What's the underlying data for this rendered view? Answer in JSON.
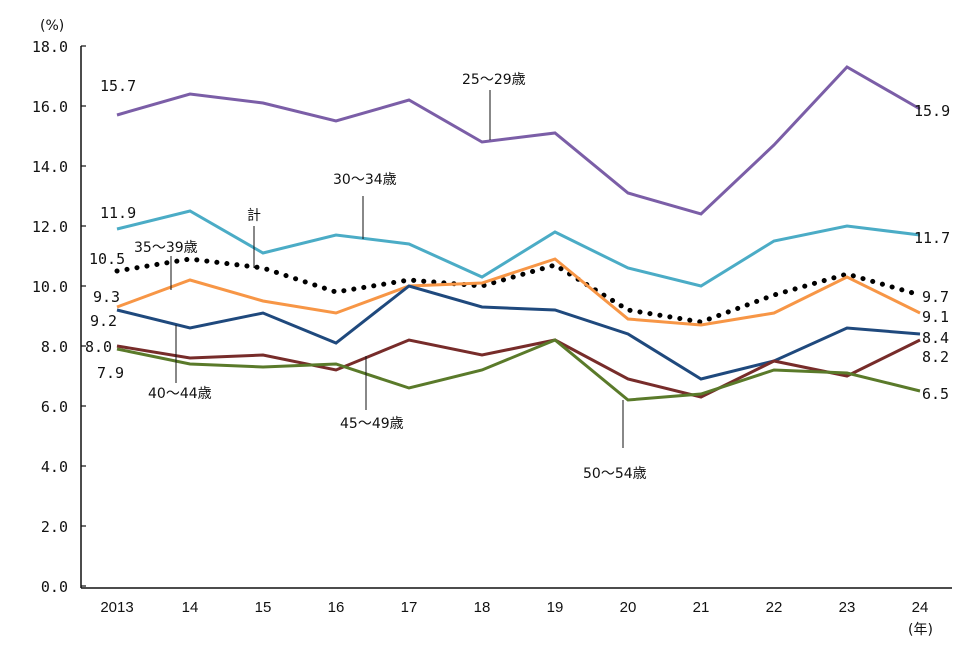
{
  "chart_data": {
    "type": "line",
    "title": "",
    "ylabel": "(%)",
    "xlabel": "(年)",
    "ylim": [
      0,
      18
    ],
    "yticks": [
      "0.0",
      "2.0",
      "4.0",
      "6.0",
      "8.0",
      "10.0",
      "12.0",
      "14.0",
      "16.0",
      "18.0"
    ],
    "ytick_values": [
      0,
      2,
      4,
      6,
      8,
      10,
      12,
      14,
      16,
      18
    ],
    "categories": [
      "2013",
      "14",
      "15",
      "16",
      "17",
      "18",
      "19",
      "20",
      "21",
      "22",
      "23",
      "24"
    ],
    "grid": false,
    "series": [
      {
        "name": "25〜29歳",
        "color": "#7b5ea7",
        "style": "solid",
        "values": [
          15.7,
          16.4,
          16.1,
          15.5,
          16.2,
          14.8,
          15.1,
          13.1,
          12.4,
          14.7,
          17.3,
          15.9
        ]
      },
      {
        "name": "30〜34歳",
        "color": "#4bacc6",
        "style": "solid",
        "values": [
          11.9,
          12.5,
          11.1,
          11.7,
          11.4,
          10.3,
          11.8,
          10.6,
          10.0,
          11.5,
          12.0,
          11.7
        ]
      },
      {
        "name": "計",
        "color": "#000000",
        "style": "dotted",
        "values": [
          10.5,
          10.9,
          10.6,
          9.8,
          10.2,
          10.0,
          10.7,
          9.2,
          8.8,
          9.7,
          10.4,
          9.7
        ]
      },
      {
        "name": "35〜39歳",
        "color": "#f79646",
        "style": "solid",
        "values": [
          9.3,
          10.2,
          9.5,
          9.1,
          10.0,
          10.1,
          10.9,
          8.9,
          8.7,
          9.1,
          10.3,
          9.1
        ]
      },
      {
        "name": "40〜44歳",
        "color": "#1f497d",
        "style": "solid",
        "values": [
          9.2,
          8.6,
          9.1,
          8.1,
          10.0,
          9.3,
          9.2,
          8.4,
          6.9,
          7.5,
          8.6,
          8.4
        ]
      },
      {
        "name": "45〜49歳",
        "color": "#772c2a",
        "style": "solid",
        "values": [
          8.0,
          7.6,
          7.7,
          7.2,
          8.2,
          7.7,
          8.2,
          6.9,
          6.3,
          7.5,
          7.0,
          8.2
        ]
      },
      {
        "name": "50〜54歳",
        "color": "#5a7a2a",
        "style": "solid",
        "values": [
          7.9,
          7.4,
          7.3,
          7.4,
          6.6,
          7.2,
          8.2,
          6.2,
          6.4,
          7.2,
          7.1,
          6.5
        ]
      }
    ],
    "data_labels": {
      "start": [
        "15.7",
        "11.9",
        "10.5",
        "9.3",
        "9.2",
        "8.0",
        "7.9"
      ],
      "end": [
        "15.9",
        "11.7",
        "9.7",
        "9.1",
        "8.4",
        "8.2",
        "6.5"
      ]
    },
    "annotations": [
      "25〜29歳",
      "30〜34歳",
      "計",
      "35〜39歳",
      "40〜44歳",
      "45〜49歳",
      "50〜54歳"
    ]
  }
}
